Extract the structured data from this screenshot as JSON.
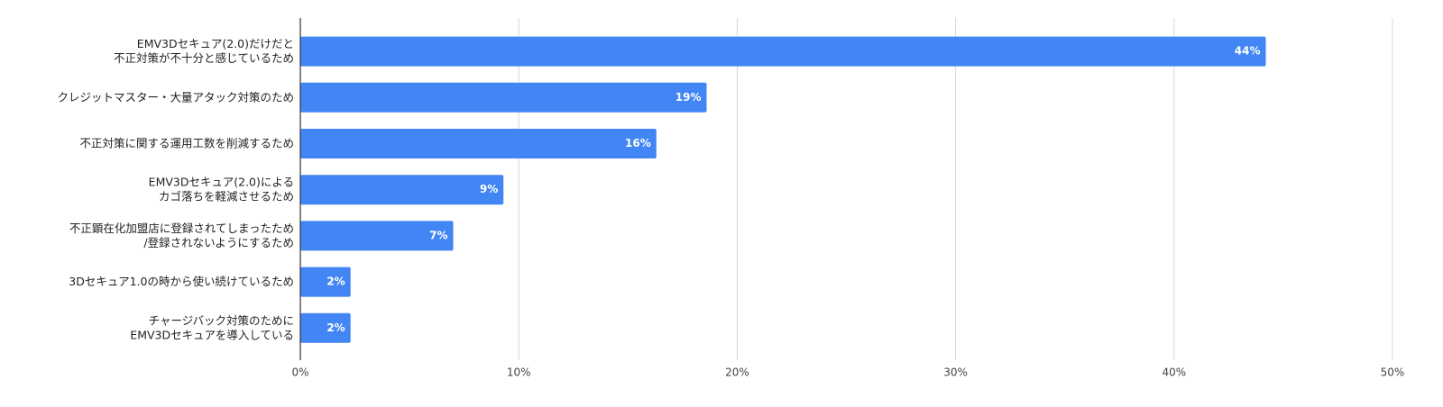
{
  "chart_data": {
    "type": "bar",
    "orientation": "horizontal",
    "categories": [
      [
        "EMV3Dセキュア(2.0)だけだと",
        "不正対策が不十分と感じているため"
      ],
      [
        "クレジットマスター・大量アタック対策のため"
      ],
      [
        "不正対策に関する運用工数を削減するため"
      ],
      [
        "EMV3Dセキュア(2.0)による",
        "カゴ落ちを軽減させるため"
      ],
      [
        "不正顕在化加盟店に登録されてしまったため",
        "/登録されないようにするため"
      ],
      [
        "3Dセキュア1.0の時から使い続けているため"
      ],
      [
        "チャージバック対策のために",
        "EMV3Dセキュアを導入している"
      ]
    ],
    "values": [
      44.2,
      18.6,
      16.3,
      9.3,
      7.0,
      2.3,
      2.3
    ],
    "value_labels": [
      "44%",
      "19%",
      "16%",
      "9%",
      "7%",
      "2%",
      "2%"
    ],
    "color": "#4285f4",
    "xlim": [
      0,
      50
    ],
    "xticks": [
      {
        "value": 0,
        "label": "0%"
      },
      {
        "value": 10,
        "label": "10%"
      },
      {
        "value": 20,
        "label": "20%"
      },
      {
        "value": 30,
        "label": "30%"
      },
      {
        "value": 40,
        "label": "40%"
      },
      {
        "value": 50,
        "label": "50%"
      }
    ],
    "grid": true
  }
}
